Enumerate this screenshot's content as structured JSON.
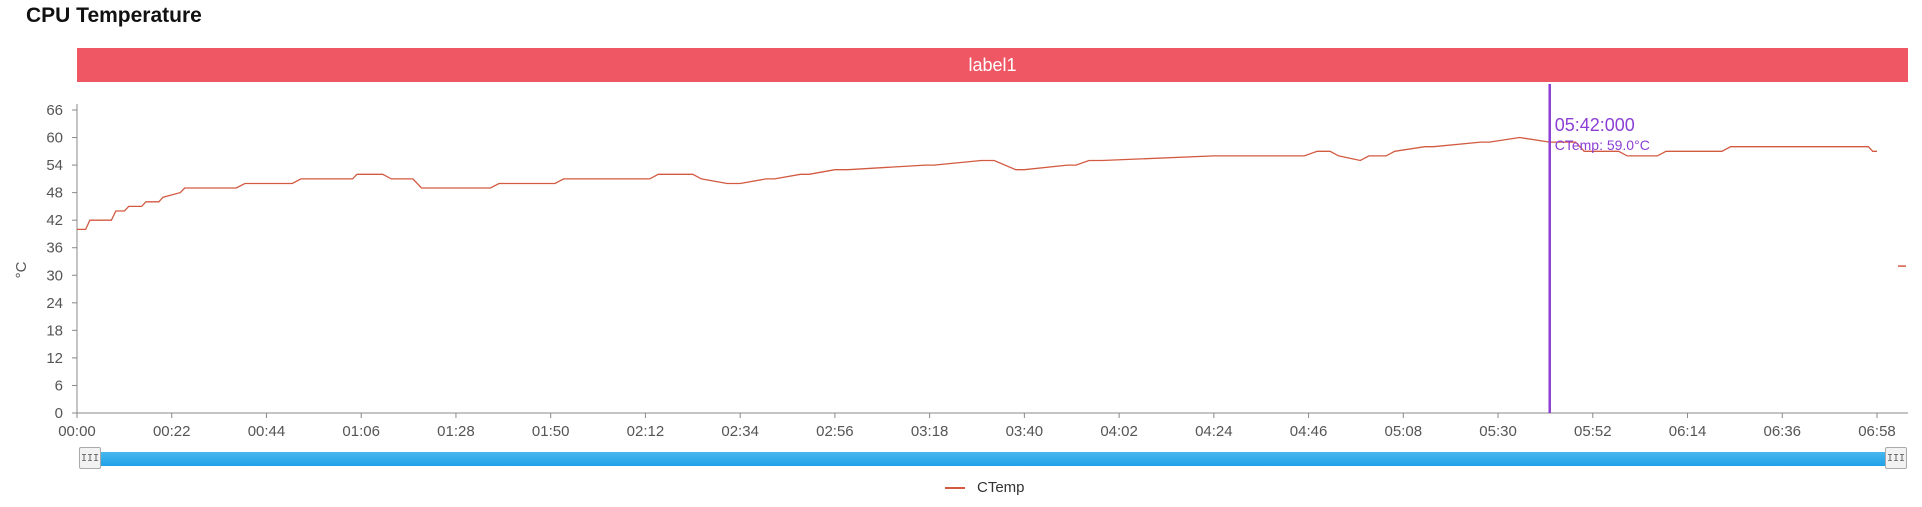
{
  "title": "CPU Temperature",
  "banner": "label1",
  "legend": {
    "label": "CTemp",
    "icon": "line-legend-icon"
  },
  "slider": {
    "handle_glyph": "III"
  },
  "colors": {
    "series": "#d25a41",
    "banner": "#ef5765",
    "cursor": "#8c3fd4",
    "slider": "#1fa1e8"
  },
  "chart_data": {
    "type": "line",
    "ylabel": "°C",
    "ylim": [
      0,
      66
    ],
    "y_ticks": [
      0,
      6,
      12,
      18,
      24,
      30,
      36,
      42,
      48,
      54,
      60,
      66
    ],
    "x_ticks": [
      "00:00",
      "00:22",
      "00:44",
      "01:06",
      "01:28",
      "01:50",
      "02:12",
      "02:34",
      "02:56",
      "03:18",
      "03:40",
      "04:02",
      "04:24",
      "04:46",
      "05:08",
      "05:30",
      "05:52",
      "06:14",
      "06:36",
      "06:58"
    ],
    "series": [
      {
        "name": "CTemp",
        "x": [
          "00:00",
          "00:02",
          "00:03",
          "00:08",
          "00:09",
          "00:11",
          "00:12",
          "00:15",
          "00:16",
          "00:19",
          "00:20",
          "00:24",
          "00:25",
          "00:37",
          "00:39",
          "00:50",
          "00:52",
          "01:04",
          "01:05",
          "01:11",
          "01:13",
          "01:18",
          "01:20",
          "01:36",
          "01:38",
          "01:51",
          "01:53",
          "02:13",
          "02:15",
          "02:23",
          "02:25",
          "02:31",
          "02:34",
          "02:40",
          "02:42",
          "02:48",
          "02:50",
          "02:56",
          "02:59",
          "03:17",
          "03:19",
          "03:30",
          "03:33",
          "03:38",
          "03:40",
          "03:50",
          "03:52",
          "03:55",
          "03:58",
          "04:24",
          "04:45",
          "04:48",
          "04:51",
          "04:53",
          "04:58",
          "05:00",
          "05:04",
          "05:06",
          "05:13",
          "05:15",
          "05:26",
          "05:28",
          "05:35",
          "05:42",
          "05:48",
          "05:50",
          "05:58",
          "06:00",
          "06:07",
          "06:09",
          "06:22",
          "06:24",
          "06:39",
          "06:41",
          "06:56",
          "06:57",
          "06:58"
        ],
        "values": [
          40,
          40,
          42,
          42,
          44,
          44,
          45,
          45,
          46,
          46,
          47,
          48,
          49,
          49,
          50,
          50,
          51,
          51,
          52,
          52,
          51,
          51,
          49,
          49,
          50,
          50,
          51,
          51,
          52,
          52,
          51,
          50,
          50,
          51,
          51,
          52,
          52,
          53,
          53,
          54,
          54,
          55,
          55,
          53,
          53,
          54,
          54,
          55,
          55,
          56,
          56,
          57,
          57,
          56,
          55,
          56,
          56,
          57,
          58,
          58,
          59,
          59,
          60,
          59,
          59,
          57,
          57,
          56,
          56,
          57,
          57,
          58,
          58,
          58,
          58,
          57,
          57
        ]
      }
    ],
    "cursor": {
      "time": "05:42:000",
      "tooltip": "CTemp: 59.0°C",
      "value": 59.0
    },
    "marker_right": {
      "value": 32
    }
  }
}
